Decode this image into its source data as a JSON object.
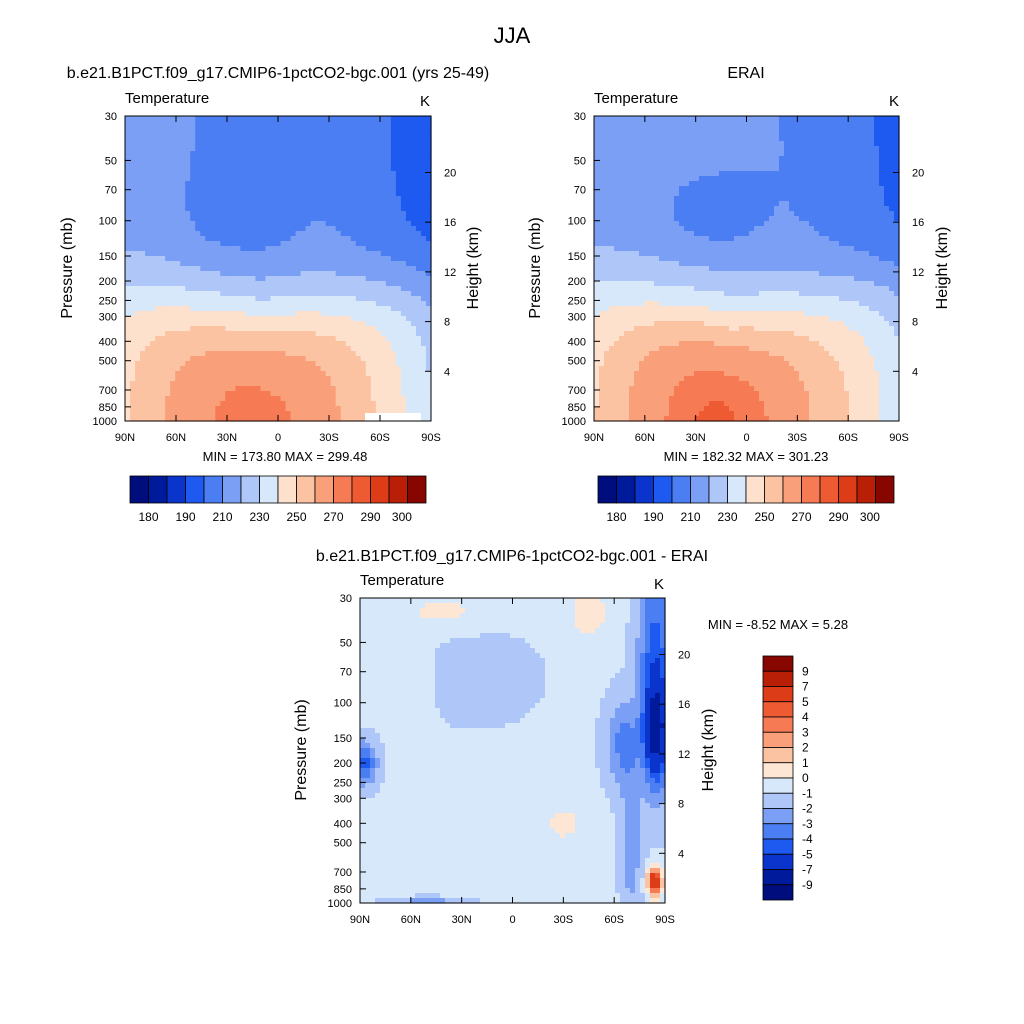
{
  "figure": {
    "title": "JJA"
  },
  "palette": {
    "absolute": [
      "#000d7d",
      "#001a9c",
      "#0a34cc",
      "#1e5af0",
      "#4a7ef2",
      "#7a9ff5",
      "#aec6f8",
      "#d8e8fb",
      "#fde1cc",
      "#fcc3a2",
      "#f9a07a",
      "#f67a54",
      "#ee5a32",
      "#dc3c17",
      "#b81f06",
      "#880600"
    ],
    "difference": [
      "#000d7d",
      "#001a9c",
      "#0a34cc",
      "#1e5af0",
      "#4a7ef2",
      "#7a9ff5",
      "#aec6f8",
      "#d8e8fb",
      "#fde6d3",
      "#fcc3a2",
      "#f9a07a",
      "#f67a54",
      "#ee5a32",
      "#dc3c17",
      "#b81f06",
      "#880600"
    ]
  },
  "chart_data": [
    {
      "type": "heatmap",
      "id": "panel-model",
      "title": "b.e21.B1PCT.f09_g17.CMIP6-1pctCO2-bgc.001 (yrs 25-49)",
      "variable": "Temperature",
      "units": "K",
      "xlabel": "",
      "ylabel": "Pressure (mb)",
      "ylabel_right": "Height (km)",
      "x_ticks": [
        "90N",
        "60N",
        "30N",
        "0",
        "30S",
        "60S",
        "90S"
      ],
      "y_ticks": [
        "30",
        "50",
        "70",
        "100",
        "150",
        "200",
        "250",
        "300",
        "400",
        "500",
        "700",
        "850",
        "1000"
      ],
      "height_ticks": [
        "20",
        "16",
        "12",
        "8",
        "4"
      ],
      "min_max_text": "MIN = 173.80  MAX = 299.48",
      "colorbar_orientation": "horizontal",
      "colorbar_labels": [
        "180",
        "190",
        "210",
        "230",
        "250",
        "270",
        "290",
        "300"
      ],
      "stats": {
        "min": 173.8,
        "max": 299.48
      }
    },
    {
      "type": "heatmap",
      "id": "panel-obs",
      "title": "ERAI",
      "variable": "Temperature",
      "units": "K",
      "xlabel": "",
      "ylabel": "Pressure (mb)",
      "ylabel_right": "Height (km)",
      "x_ticks": [
        "90N",
        "60N",
        "30N",
        "0",
        "30S",
        "60S",
        "90S"
      ],
      "y_ticks": [
        "30",
        "50",
        "70",
        "100",
        "150",
        "200",
        "250",
        "300",
        "400",
        "500",
        "700",
        "850",
        "1000"
      ],
      "height_ticks": [
        "20",
        "16",
        "12",
        "8",
        "4"
      ],
      "min_max_text": "MIN = 182.32  MAX = 301.23",
      "colorbar_orientation": "horizontal",
      "colorbar_labels": [
        "180",
        "190",
        "210",
        "230",
        "250",
        "270",
        "290",
        "300"
      ],
      "stats": {
        "min": 182.32,
        "max": 301.23
      }
    },
    {
      "type": "heatmap",
      "id": "panel-diff",
      "title": "b.e21.B1PCT.f09_g17.CMIP6-1pctCO2-bgc.001 - ERAI",
      "variable": "Temperature",
      "units": "K",
      "xlabel": "",
      "ylabel": "Pressure (mb)",
      "ylabel_right": "Height (km)",
      "x_ticks": [
        "90N",
        "60N",
        "30N",
        "0",
        "30S",
        "60S",
        "90S"
      ],
      "y_ticks": [
        "30",
        "50",
        "70",
        "100",
        "150",
        "200",
        "250",
        "300",
        "400",
        "500",
        "700",
        "850",
        "1000"
      ],
      "height_ticks": [
        "20",
        "16",
        "12",
        "8",
        "4"
      ],
      "min_max_text": "MIN =  -8.52  MAX =   5.28",
      "colorbar_orientation": "vertical",
      "colorbar_labels": [
        "9",
        "7",
        "5",
        "4",
        "3",
        "2",
        "1",
        "0",
        "-1",
        "-2",
        "-3",
        "-4",
        "-5",
        "-7",
        "-9"
      ],
      "stats": {
        "min": -8.52,
        "max": 5.28
      }
    }
  ]
}
